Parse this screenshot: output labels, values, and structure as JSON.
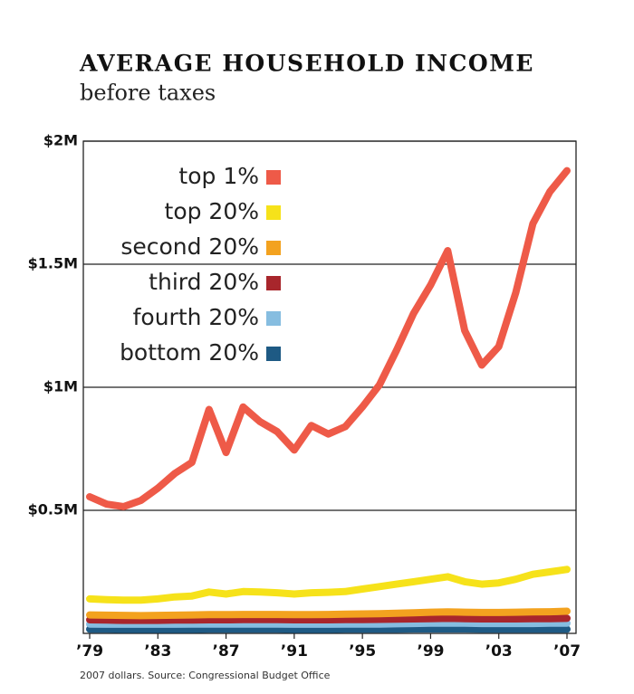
{
  "chart_data": {
    "type": "line",
    "title": "AVERAGE HOUSEHOLD INCOME",
    "subtitle": "before taxes",
    "note": "2007 dollars. Source: Congressional Budget Office",
    "x": [
      1979,
      1980,
      1981,
      1982,
      1983,
      1984,
      1985,
      1986,
      1987,
      1988,
      1989,
      1990,
      1991,
      1992,
      1993,
      1994,
      1995,
      1996,
      1997,
      1998,
      1999,
      2000,
      2001,
      2002,
      2003,
      2004,
      2005,
      2006,
      2007
    ],
    "xlim": [
      1979,
      2007
    ],
    "xticks": [
      {
        "value": 1979,
        "label": "’79"
      },
      {
        "value": 1983,
        "label": "’83"
      },
      {
        "value": 1987,
        "label": "’87"
      },
      {
        "value": 1991,
        "label": "’91"
      },
      {
        "value": 1995,
        "label": "’95"
      },
      {
        "value": 1999,
        "label": "’99"
      },
      {
        "value": 2003,
        "label": "’03"
      },
      {
        "value": 2007,
        "label": "’07"
      }
    ],
    "ylim": [
      0,
      2000000
    ],
    "yticks": [
      {
        "value": 500000,
        "label": "$0.5M"
      },
      {
        "value": 1000000,
        "label": "$1M"
      },
      {
        "value": 1500000,
        "label": "$1.5M"
      },
      {
        "value": 2000000,
        "label": "$2M"
      }
    ],
    "grid": true,
    "legend": "upper-left",
    "series": [
      {
        "name": "top 1%",
        "color": "#ee5a48",
        "values": [
          555000,
          525000,
          515000,
          540000,
          590000,
          650000,
          695000,
          910000,
          735000,
          920000,
          860000,
          820000,
          745000,
          845000,
          810000,
          840000,
          920000,
          1010000,
          1150000,
          1300000,
          1415000,
          1555000,
          1230000,
          1090000,
          1165000,
          1385000,
          1665000,
          1795000,
          1880000
        ]
      },
      {
        "name": "top 20%",
        "color": "#f6e21a",
        "values": [
          140000,
          137000,
          135000,
          135000,
          140000,
          148000,
          152000,
          168000,
          160000,
          170000,
          168000,
          165000,
          160000,
          165000,
          167000,
          170000,
          180000,
          190000,
          200000,
          210000,
          220000,
          230000,
          210000,
          200000,
          205000,
          220000,
          240000,
          250000,
          260000
        ]
      },
      {
        "name": "second 20%",
        "color": "#f3a21f",
        "values": [
          75000,
          74000,
          73000,
          72000,
          73000,
          74000,
          75000,
          76000,
          76000,
          77000,
          77000,
          77000,
          76000,
          76000,
          77000,
          78000,
          79000,
          80000,
          82000,
          84000,
          86000,
          87000,
          86000,
          85000,
          85000,
          86000,
          87000,
          88000,
          90000
        ]
      },
      {
        "name": "third 20%",
        "color": "#a8262c",
        "values": [
          55000,
          54000,
          53000,
          53000,
          53000,
          54000,
          54000,
          55000,
          55000,
          56000,
          56000,
          56000,
          55000,
          55000,
          55000,
          56000,
          56000,
          57000,
          58000,
          59000,
          60000,
          61000,
          60000,
          59000,
          59000,
          59000,
          60000,
          60000,
          61000
        ]
      },
      {
        "name": "fourth 20%",
        "color": "#86bde0",
        "values": [
          38000,
          37000,
          37000,
          37000,
          37000,
          37000,
          38000,
          38000,
          38000,
          38000,
          38000,
          38000,
          37000,
          37000,
          37000,
          38000,
          38000,
          38000,
          39000,
          40000,
          41000,
          41000,
          41000,
          40000,
          40000,
          40000,
          40000,
          41000,
          41000
        ]
      },
      {
        "name": "bottom 20%",
        "color": "#1e5a84",
        "values": [
          17000,
          17000,
          16000,
          16000,
          16000,
          16000,
          16000,
          17000,
          17000,
          17000,
          17000,
          17000,
          16000,
          16000,
          16000,
          17000,
          17000,
          17000,
          17000,
          18000,
          18000,
          18000,
          18000,
          17000,
          17000,
          17000,
          17000,
          17000,
          17000
        ]
      }
    ]
  }
}
